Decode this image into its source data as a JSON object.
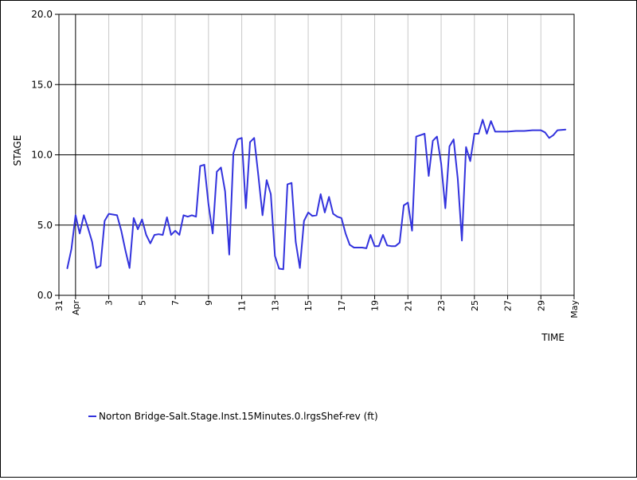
{
  "chart_data": {
    "type": "line",
    "title": "",
    "xlabel": "TIME",
    "ylabel": "STAGE",
    "ylim": [
      0.0,
      20.0
    ],
    "xlim": [
      "03-31",
      "05-01"
    ],
    "y_ticks": [
      "0.0",
      "5.0",
      "10.0",
      "15.0",
      "20.0"
    ],
    "x_tick_labels": [
      "31",
      "Apr",
      "3",
      "5",
      "7",
      "9",
      "11",
      "13",
      "15",
      "17",
      "19",
      "21",
      "23",
      "25",
      "27",
      "29",
      "May"
    ],
    "grid": {
      "horizontal": true,
      "vertical": true
    },
    "legend_position": "bottom-left",
    "series": [
      {
        "name": "Norton Bridge-Salt.Stage.Inst.15Minutes.0.lrgsShef-rev (ft)",
        "color": "#3333dd",
        "points": [
          [
            "03-31 12:00",
            1.9
          ],
          [
            "03-31 18:00",
            3.3
          ],
          [
            "04-01 00:00",
            5.7
          ],
          [
            "04-01 06:00",
            4.4
          ],
          [
            "04-01 12:00",
            5.7
          ],
          [
            "04-01 18:00",
            4.8
          ],
          [
            "04-02 00:00",
            3.8
          ],
          [
            "04-02 06:00",
            1.95
          ],
          [
            "04-02 12:00",
            2.1
          ],
          [
            "04-02 18:00",
            5.3
          ],
          [
            "04-03 00:00",
            5.8
          ],
          [
            "04-03 06:00",
            5.75
          ],
          [
            "04-03 12:00",
            5.7
          ],
          [
            "04-03 18:00",
            4.6
          ],
          [
            "04-04 00:00",
            3.2
          ],
          [
            "04-04 06:00",
            1.95
          ],
          [
            "04-04 12:00",
            5.5
          ],
          [
            "04-04 18:00",
            4.7
          ],
          [
            "04-05 00:00",
            5.4
          ],
          [
            "04-05 06:00",
            4.3
          ],
          [
            "04-05 12:00",
            3.7
          ],
          [
            "04-05 18:00",
            4.3
          ],
          [
            "04-06 00:00",
            4.35
          ],
          [
            "04-06 06:00",
            4.3
          ],
          [
            "04-06 12:00",
            5.55
          ],
          [
            "04-06 18:00",
            4.3
          ],
          [
            "04-07 00:00",
            4.6
          ],
          [
            "04-07 06:00",
            4.3
          ],
          [
            "04-07 12:00",
            5.7
          ],
          [
            "04-07 18:00",
            5.6
          ],
          [
            "04-08 00:00",
            5.7
          ],
          [
            "04-08 06:00",
            5.6
          ],
          [
            "04-08 12:00",
            9.2
          ],
          [
            "04-08 18:00",
            9.3
          ],
          [
            "04-09 00:00",
            6.5
          ],
          [
            "04-09 06:00",
            4.4
          ],
          [
            "04-09 12:00",
            8.8
          ],
          [
            "04-09 18:00",
            9.1
          ],
          [
            "04-10 00:00",
            7.4
          ],
          [
            "04-10 06:00",
            2.9
          ],
          [
            "04-10 12:00",
            10.1
          ],
          [
            "04-10 18:00",
            11.1
          ],
          [
            "04-11 00:00",
            11.2
          ],
          [
            "04-11 06:00",
            6.2
          ],
          [
            "04-11 12:00",
            10.9
          ],
          [
            "04-11 18:00",
            11.2
          ],
          [
            "04-12 00:00",
            8.5
          ],
          [
            "04-12 06:00",
            5.7
          ],
          [
            "04-12 12:00",
            8.2
          ],
          [
            "04-12 18:00",
            7.2
          ],
          [
            "04-13 00:00",
            2.8
          ],
          [
            "04-13 06:00",
            1.9
          ],
          [
            "04-13 12:00",
            1.85
          ],
          [
            "04-13 18:00",
            7.9
          ],
          [
            "04-14 00:00",
            8.0
          ],
          [
            "04-14 06:00",
            3.8
          ],
          [
            "04-14 12:00",
            1.95
          ],
          [
            "04-14 18:00",
            5.3
          ],
          [
            "04-15 00:00",
            5.9
          ],
          [
            "04-15 06:00",
            5.65
          ],
          [
            "04-15 12:00",
            5.7
          ],
          [
            "04-15 18:00",
            7.2
          ],
          [
            "04-16 00:00",
            5.9
          ],
          [
            "04-16 06:00",
            7.0
          ],
          [
            "04-16 12:00",
            5.8
          ],
          [
            "04-16 18:00",
            5.6
          ],
          [
            "04-17 00:00",
            5.5
          ],
          [
            "04-17 06:00",
            4.4
          ],
          [
            "04-17 12:00",
            3.6
          ],
          [
            "04-17 18:00",
            3.4
          ],
          [
            "04-18 00:00",
            3.4
          ],
          [
            "04-18 06:00",
            3.4
          ],
          [
            "04-18 12:00",
            3.35
          ],
          [
            "04-18 18:00",
            4.3
          ],
          [
            "04-19 00:00",
            3.5
          ],
          [
            "04-19 06:00",
            3.5
          ],
          [
            "04-19 12:00",
            4.3
          ],
          [
            "04-19 18:00",
            3.55
          ],
          [
            "04-20 00:00",
            3.5
          ],
          [
            "04-20 06:00",
            3.5
          ],
          [
            "04-20 12:00",
            3.75
          ],
          [
            "04-20 18:00",
            6.4
          ],
          [
            "04-21 00:00",
            6.6
          ],
          [
            "04-21 06:00",
            4.6
          ],
          [
            "04-21 12:00",
            11.3
          ],
          [
            "04-21 18:00",
            11.4
          ],
          [
            "04-22 00:00",
            11.5
          ],
          [
            "04-22 06:00",
            8.5
          ],
          [
            "04-22 12:00",
            11.0
          ],
          [
            "04-22 18:00",
            11.3
          ],
          [
            "04-23 00:00",
            9.4
          ],
          [
            "04-23 06:00",
            6.2
          ],
          [
            "04-23 12:00",
            10.6
          ],
          [
            "04-23 18:00",
            11.1
          ],
          [
            "04-24 00:00",
            8.3
          ],
          [
            "04-24 06:00",
            3.9
          ],
          [
            "04-24 12:00",
            10.55
          ],
          [
            "04-24 18:00",
            9.55
          ],
          [
            "04-25 00:00",
            11.5
          ],
          [
            "04-25 06:00",
            11.5
          ],
          [
            "04-25 12:00",
            12.5
          ],
          [
            "04-25 18:00",
            11.5
          ],
          [
            "04-26 00:00",
            12.4
          ],
          [
            "04-26 06:00",
            11.65
          ],
          [
            "04-26 12:00",
            11.65
          ],
          [
            "04-27 00:00",
            11.65
          ],
          [
            "04-27 12:00",
            11.7
          ],
          [
            "04-28 00:00",
            11.7
          ],
          [
            "04-28 12:00",
            11.75
          ],
          [
            "04-29 00:00",
            11.75
          ],
          [
            "04-29 06:00",
            11.6
          ],
          [
            "04-29 12:00",
            11.2
          ],
          [
            "04-29 18:00",
            11.4
          ],
          [
            "04-30 00:00",
            11.75
          ],
          [
            "04-30 12:00",
            11.8
          ]
        ]
      }
    ]
  }
}
